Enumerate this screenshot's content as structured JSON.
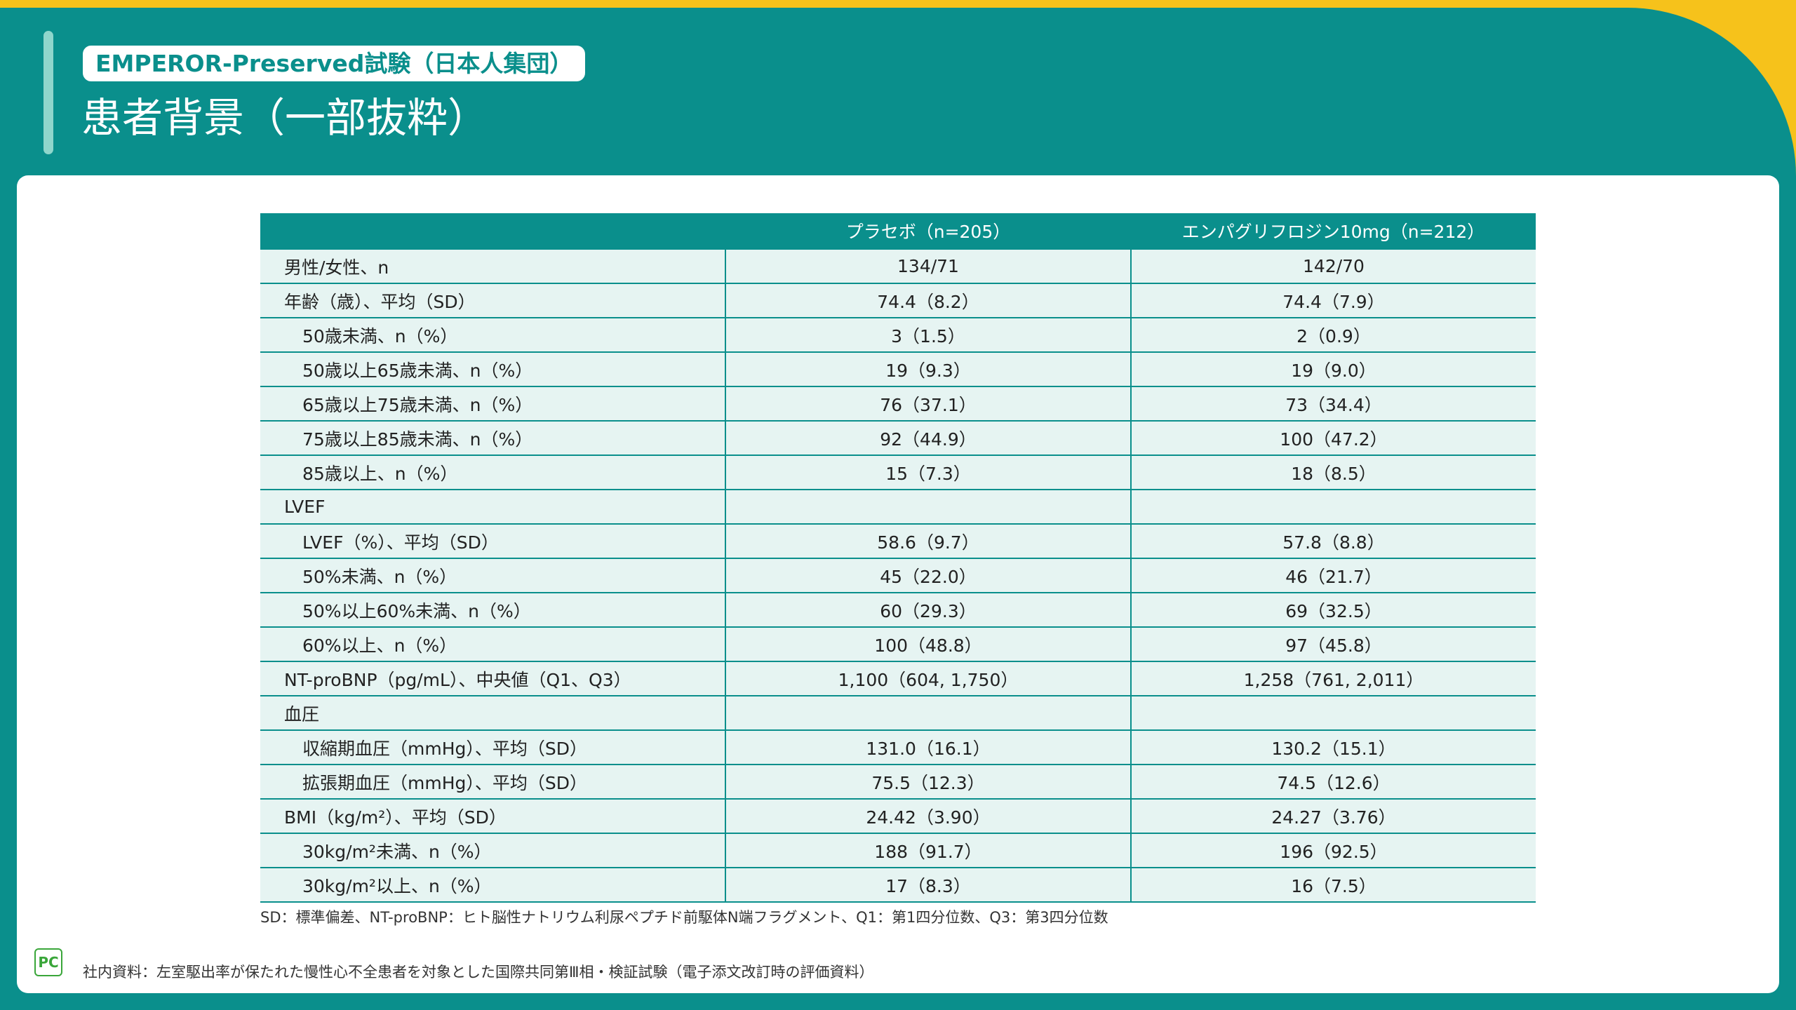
{
  "header": {
    "badge": "EMPEROR-Preserved試験（日本人集団）",
    "title": "患者背景（一部抜粋）"
  },
  "table": {
    "columns": [
      "プラセボ（n=205）",
      "エンパグリフロジン10mg（n=212）"
    ],
    "rows": [
      [
        "男性/女性、n",
        "134/71",
        "142/70"
      ],
      [
        "年齢（歳）、平均（SD）",
        "74.4（8.2）",
        "74.4（7.9）"
      ],
      [
        "50歳未満、n（%）",
        "3（1.5）",
        "2（0.9）"
      ],
      [
        "50歳以上65歳未満、n（%）",
        "19（9.3）",
        "19（9.0）"
      ],
      [
        "65歳以上75歳未満、n（%）",
        "76（37.1）",
        "73（34.4）"
      ],
      [
        "75歳以上85歳未満、n（%）",
        "92（44.9）",
        "100（47.2）"
      ],
      [
        "85歳以上、n（%）",
        "15（7.3）",
        "18（8.5）"
      ],
      [
        "LVEF"
      ],
      [
        "LVEF（%）、平均（SD）",
        "58.6（9.7）",
        "57.8（8.8）"
      ],
      [
        "50%未満、n（%）",
        "45（22.0）",
        "46（21.7）"
      ],
      [
        "50%以上60%未満、n（%）",
        "60（29.3）",
        "69（32.5）"
      ],
      [
        "60%以上、n（%）",
        "100（48.8）",
        "97（45.8）"
      ],
      [
        "NT-proBNP（pg/mL）、中央値（Q1、Q3）",
        "1,100（604, 1,750）",
        "1,258（761, 2,011）"
      ],
      [
        "血圧"
      ],
      [
        "収縮期血圧（mmHg）、平均（SD）",
        "131.0（16.1）",
        "130.2（15.1）"
      ],
      [
        "拡張期血圧（mmHg）、平均（SD）",
        "75.5（12.3）",
        "74.5（12.6）"
      ],
      [
        "BMI（kg/m²）、平均（SD）",
        "24.42（3.90）",
        "24.27（3.76）"
      ],
      [
        "30kg/m²未満、n（%）",
        "188（91.7）",
        "196（92.5）"
      ],
      [
        "30kg/m²以上、n（%）",
        "17（8.3）",
        "16（7.5）"
      ]
    ]
  },
  "footnote": "SD：標準偏差、NT-proBNP：ヒト脳性ナトリウム利尿ペプチド前駆体N端フラグメント、Q1：第1四分位数、Q3：第3四分位数",
  "logo": "PC",
  "source": "社内資料：左室駆出率が保たれた慢性心不全患者を対象とした国際共同第Ⅲ相・検証試験（電子添文改訂時の評価資料）"
}
